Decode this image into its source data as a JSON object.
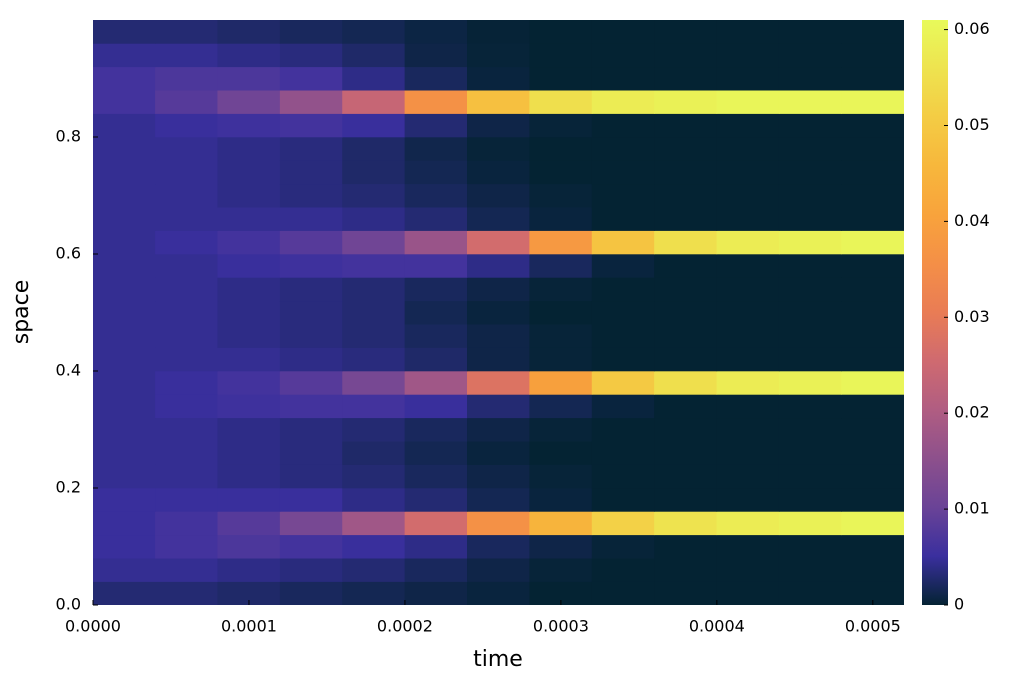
{
  "chart_data": {
    "type": "heatmap",
    "x_label": "time",
    "y_label": "space",
    "x": [
      2e-05,
      6e-05,
      0.0001,
      0.00014,
      0.00018,
      0.00022,
      0.00026,
      0.0003,
      0.00034,
      0.00038,
      0.00042,
      0.00046,
      0.0005
    ],
    "y": [
      0.02,
      0.06,
      0.1,
      0.14,
      0.18,
      0.22,
      0.26,
      0.3,
      0.34,
      0.38,
      0.42,
      0.46,
      0.5,
      0.54,
      0.58,
      0.62,
      0.66,
      0.7,
      0.74,
      0.78,
      0.82,
      0.86,
      0.9,
      0.94,
      0.98
    ],
    "z": [
      [
        0.003,
        0.003,
        0.0025,
        0.002,
        0.0015,
        0.001,
        0.0005,
        0,
        0,
        0,
        0,
        0,
        0
      ],
      [
        0.0045,
        0.0045,
        0.004,
        0.0035,
        0.003,
        0.002,
        0.001,
        0.0003,
        0,
        0,
        0,
        0,
        0
      ],
      [
        0.005,
        0.006,
        0.007,
        0.006,
        0.005,
        0.004,
        0.002,
        0.001,
        0.0003,
        0,
        0,
        0,
        0
      ],
      [
        0.005,
        0.006,
        0.008,
        0.012,
        0.018,
        0.026,
        0.036,
        0.045,
        0.052,
        0.056,
        0.058,
        0.059,
        0.06
      ],
      [
        0.005,
        0.005,
        0.005,
        0.005,
        0.004,
        0.003,
        0.0015,
        0.0005,
        0,
        0,
        0,
        0,
        0
      ],
      [
        0.0045,
        0.0045,
        0.004,
        0.0035,
        0.003,
        0.002,
        0.001,
        0.0003,
        0,
        0,
        0,
        0,
        0
      ],
      [
        0.0045,
        0.0045,
        0.004,
        0.0035,
        0.0025,
        0.0015,
        0.0005,
        0,
        0,
        0,
        0,
        0,
        0
      ],
      [
        0.0045,
        0.0045,
        0.004,
        0.0035,
        0.003,
        0.002,
        0.001,
        0.0003,
        0,
        0,
        0,
        0,
        0
      ],
      [
        0.0045,
        0.005,
        0.0055,
        0.006,
        0.006,
        0.005,
        0.003,
        0.0015,
        0.0005,
        0,
        0,
        0,
        0
      ],
      [
        0.0045,
        0.005,
        0.006,
        0.008,
        0.012,
        0.018,
        0.028,
        0.04,
        0.05,
        0.055,
        0.058,
        0.059,
        0.06
      ],
      [
        0.0045,
        0.0045,
        0.0045,
        0.004,
        0.0035,
        0.0025,
        0.001,
        0.0003,
        0,
        0,
        0,
        0,
        0
      ],
      [
        0.0045,
        0.0045,
        0.004,
        0.0035,
        0.003,
        0.002,
        0.001,
        0.0003,
        0,
        0,
        0,
        0,
        0
      ],
      [
        0.0045,
        0.0045,
        0.004,
        0.0035,
        0.003,
        0.0015,
        0.0005,
        0,
        0,
        0,
        0,
        0,
        0
      ],
      [
        0.0045,
        0.0045,
        0.004,
        0.0035,
        0.003,
        0.002,
        0.001,
        0.0003,
        0,
        0,
        0,
        0,
        0
      ],
      [
        0.0045,
        0.0045,
        0.005,
        0.0055,
        0.006,
        0.006,
        0.004,
        0.002,
        0.0005,
        0,
        0,
        0,
        0
      ],
      [
        0.0045,
        0.005,
        0.006,
        0.008,
        0.011,
        0.017,
        0.026,
        0.038,
        0.049,
        0.055,
        0.058,
        0.059,
        0.06
      ],
      [
        0.0045,
        0.0045,
        0.0045,
        0.0045,
        0.004,
        0.003,
        0.0015,
        0.0005,
        0,
        0,
        0,
        0,
        0
      ],
      [
        0.0045,
        0.0045,
        0.004,
        0.0035,
        0.003,
        0.002,
        0.001,
        0.0003,
        0,
        0,
        0,
        0,
        0
      ],
      [
        0.0045,
        0.0045,
        0.004,
        0.0035,
        0.0025,
        0.0015,
        0.0005,
        0,
        0,
        0,
        0,
        0,
        0
      ],
      [
        0.0045,
        0.0045,
        0.004,
        0.0035,
        0.0025,
        0.0012,
        0.0003,
        0,
        0,
        0,
        0,
        0,
        0
      ],
      [
        0.0045,
        0.005,
        0.0055,
        0.006,
        0.005,
        0.003,
        0.001,
        0.0003,
        0,
        0,
        0,
        0,
        0
      ],
      [
        0.006,
        0.008,
        0.011,
        0.016,
        0.024,
        0.036,
        0.048,
        0.055,
        0.058,
        0.059,
        0.06,
        0.06,
        0.06
      ],
      [
        0.006,
        0.007,
        0.007,
        0.006,
        0.004,
        0.002,
        0.0005,
        0,
        0,
        0,
        0,
        0,
        0
      ],
      [
        0.0045,
        0.0045,
        0.004,
        0.0035,
        0.0025,
        0.001,
        0.0003,
        0,
        0,
        0,
        0,
        0,
        0
      ],
      [
        0.003,
        0.003,
        0.0025,
        0.002,
        0.0015,
        0.0008,
        0.0002,
        0,
        0,
        0,
        0,
        0,
        0
      ]
    ],
    "xlim": [
      0,
      0.00052
    ],
    "ylim": [
      0,
      1
    ],
    "clim": [
      0,
      0.061
    ],
    "xticks": [
      {
        "value": 0,
        "label": "0.0000"
      },
      {
        "value": 0.0001,
        "label": "0.0001"
      },
      {
        "value": 0.0002,
        "label": "0.0002"
      },
      {
        "value": 0.0003,
        "label": "0.0003"
      },
      {
        "value": 0.0004,
        "label": "0.0004"
      },
      {
        "value": 0.0005,
        "label": "0.0005"
      }
    ],
    "yticks": [
      {
        "value": 0,
        "label": "0.0"
      },
      0.2,
      0.4,
      0.6,
      0.8
    ],
    "cticks": [
      0,
      0.01,
      0.02,
      0.03,
      0.04,
      0.05,
      0.06
    ],
    "colormap": [
      "#042333",
      "#3a2f9e",
      "#6a4397",
      "#8d508c",
      "#b05d82",
      "#cf6a70",
      "#e97c55",
      "#f48f47",
      "#f8a33c",
      "#f7b73c",
      "#f4cc44",
      "#eee34f",
      "#e8fa5b"
    ]
  }
}
